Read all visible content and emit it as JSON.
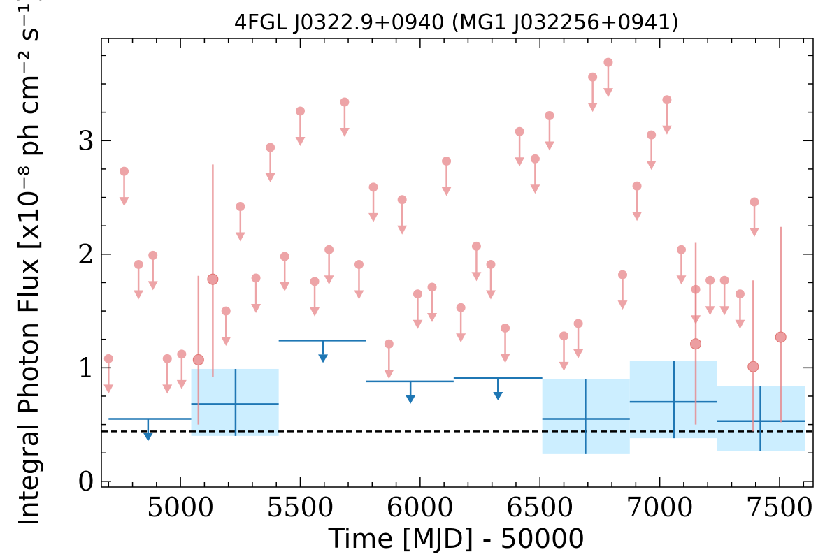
{
  "chart_data": {
    "type": "scatter",
    "title": "4FGL J0322.9+0940 (MG1 J032256+0941)",
    "xlabel": "Time [MJD] - 50000",
    "ylabel": "Integral Photon Flux [x10⁻⁸ ph cm⁻² s⁻¹]",
    "xlim": [
      4670,
      7640
    ],
    "ylim": [
      -0.05,
      3.9
    ],
    "xticks": [
      5000,
      5500,
      6000,
      6500,
      7000,
      7500
    ],
    "xtick_labels": [
      "5000",
      "5500",
      "6000",
      "6500",
      "7000",
      "7500"
    ],
    "yticks": [
      0,
      1,
      2,
      3
    ],
    "ytick_labels": [
      "0",
      "1",
      "2",
      "3"
    ],
    "grid": false,
    "baseline_flux": 0.44,
    "short_upper_limits": [
      {
        "x": 4700,
        "y": 1.08
      },
      {
        "x": 4765,
        "y": 2.73
      },
      {
        "x": 4825,
        "y": 1.91
      },
      {
        "x": 4885,
        "y": 1.99
      },
      {
        "x": 4945,
        "y": 1.08
      },
      {
        "x": 5005,
        "y": 1.12
      },
      {
        "x": 5190,
        "y": 1.5
      },
      {
        "x": 5250,
        "y": 2.42
      },
      {
        "x": 5315,
        "y": 1.79
      },
      {
        "x": 5375,
        "y": 2.94
      },
      {
        "x": 5435,
        "y": 1.98
      },
      {
        "x": 5500,
        "y": 3.26
      },
      {
        "x": 5560,
        "y": 1.76
      },
      {
        "x": 5620,
        "y": 2.04
      },
      {
        "x": 5685,
        "y": 3.34
      },
      {
        "x": 5745,
        "y": 1.91
      },
      {
        "x": 5805,
        "y": 2.59
      },
      {
        "x": 5870,
        "y": 1.21
      },
      {
        "x": 5925,
        "y": 2.48
      },
      {
        "x": 5990,
        "y": 1.65
      },
      {
        "x": 6050,
        "y": 1.71
      },
      {
        "x": 6110,
        "y": 2.82
      },
      {
        "x": 6170,
        "y": 1.53
      },
      {
        "x": 6235,
        "y": 2.07
      },
      {
        "x": 6295,
        "y": 1.91
      },
      {
        "x": 6355,
        "y": 1.35
      },
      {
        "x": 6415,
        "y": 3.08
      },
      {
        "x": 6480,
        "y": 2.84
      },
      {
        "x": 6540,
        "y": 3.22
      },
      {
        "x": 6600,
        "y": 1.28
      },
      {
        "x": 6660,
        "y": 1.39
      },
      {
        "x": 6720,
        "y": 3.56
      },
      {
        "x": 6785,
        "y": 3.69
      },
      {
        "x": 6845,
        "y": 1.82
      },
      {
        "x": 6905,
        "y": 2.6
      },
      {
        "x": 6965,
        "y": 3.05
      },
      {
        "x": 7030,
        "y": 3.36
      },
      {
        "x": 7090,
        "y": 2.04
      },
      {
        "x": 7150,
        "y": 1.69
      },
      {
        "x": 7210,
        "y": 1.77
      },
      {
        "x": 7270,
        "y": 1.77
      },
      {
        "x": 7335,
        "y": 1.65
      },
      {
        "x": 7395,
        "y": 2.46
      }
    ],
    "short_detections": [
      {
        "x": 5075,
        "y": 1.07,
        "err_low": 0.5,
        "err_high": 1.81
      },
      {
        "x": 5135,
        "y": 1.78,
        "err_low": 0.92,
        "err_high": 2.79
      },
      {
        "x": 7150,
        "y": 1.21,
        "err_low": 0.5,
        "err_high": 2.1
      },
      {
        "x": 7390,
        "y": 1.01,
        "err_low": 0.44,
        "err_high": 1.77
      },
      {
        "x": 7505,
        "y": 1.27,
        "err_low": 0.52,
        "err_high": 2.24
      }
    ],
    "long_upper_limits": [
      {
        "x": 4865,
        "x_min": 4700,
        "x_max": 5045,
        "y": 0.55
      },
      {
        "x": 5595,
        "x_min": 5410,
        "x_max": 5775,
        "y": 1.24
      },
      {
        "x": 5960,
        "x_min": 5775,
        "x_max": 6140,
        "y": 0.88
      },
      {
        "x": 6325,
        "x_min": 6140,
        "x_max": 6510,
        "y": 0.91
      }
    ],
    "long_detections": [
      {
        "x": 5230,
        "x_min": 5045,
        "x_max": 5410,
        "y": 0.68,
        "err_low": 0.4,
        "err_high": 0.99
      },
      {
        "x": 6690,
        "x_min": 6510,
        "x_max": 6875,
        "y": 0.55,
        "err_low": 0.24,
        "err_high": 0.9
      },
      {
        "x": 7060,
        "x_min": 6875,
        "x_max": 7240,
        "y": 0.7,
        "err_low": 0.38,
        "err_high": 1.06
      },
      {
        "x": 7420,
        "x_min": 7240,
        "x_max": 7605,
        "y": 0.53,
        "err_low": 0.27,
        "err_high": 0.84
      }
    ],
    "colors": {
      "short": "#e8868a",
      "long": "#1f77b4",
      "band": "#cceeff",
      "baseline": "#000000"
    }
  }
}
